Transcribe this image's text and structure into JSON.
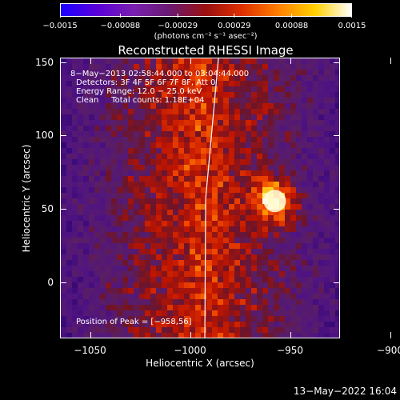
{
  "colorbar": {
    "ticks": [
      "-0.0015",
      "-0.00088",
      "-0.00029",
      "0.00029",
      "0.00088",
      "0.0015"
    ],
    "tick_values": [
      -0.0015,
      -0.00088,
      -0.00029,
      0.00029,
      0.00088,
      0.0015
    ],
    "min": -0.0015,
    "max": 0.0015,
    "label": "(photons cm⁻² s⁻¹ asec⁻²)",
    "colors": [
      "#1a00ff",
      "#5a00d8",
      "#7a20b0",
      "#6a1a70",
      "#9a1010",
      "#e03000",
      "#ff8000",
      "#ffd000",
      "#ffffff"
    ]
  },
  "chart_data": {
    "type": "heatmap",
    "title": "Reconstructed RHESSI Image",
    "xlabel": "Heliocentric X (arcsec)",
    "ylabel": "Heliocentric Y (arcsec)",
    "xlim": [
      -1065,
      -925
    ],
    "ylim": [
      -38,
      153
    ],
    "x_ticks": [
      -1050,
      -1000,
      -950,
      -900
    ],
    "x_tick_labels": [
      "−1050",
      "−1000",
      "−950",
      "−900"
    ],
    "y_ticks": [
      0,
      50,
      100,
      150
    ],
    "y_tick_labels": [
      "0",
      "50",
      "100",
      "150"
    ],
    "peak": [
      -958,
      56
    ],
    "annotations": [
      "8−May−2013 02:58:44.000 to 03:04:44.000",
      "Detectors: 3F 4F 5F 6F 7F 8F, Att 0",
      "Energy Range: 12.0 − 25.0 keV",
      "Clean     Total counts: 1.18E+04"
    ],
    "peak_label": "Position of Peak = [−958,56]",
    "limb": "solar limb drawn as white curve"
  },
  "footer": "13−May−2022 16:04"
}
